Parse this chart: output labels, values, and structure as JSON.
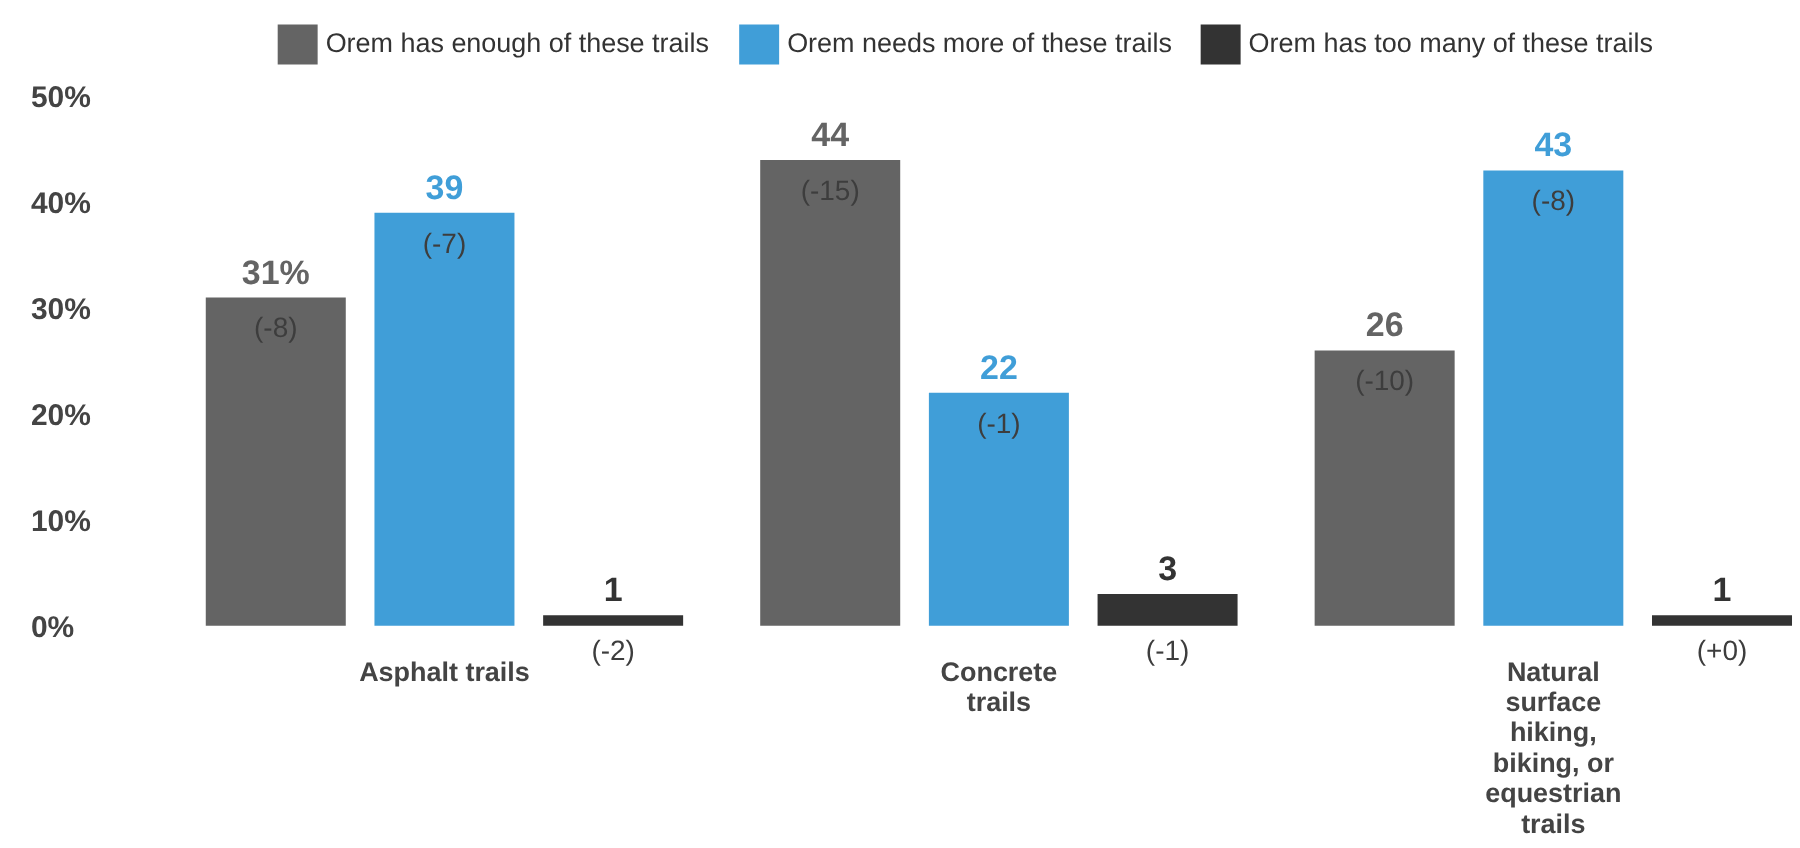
{
  "chart_data": {
    "type": "bar",
    "categories": [
      "Asphalt trails",
      "Concrete trails",
      "Natural surface hiking, biking, or equestrian trails"
    ],
    "series": [
      {
        "name": "Orem has enough of these trails",
        "color": "#646464",
        "values": [
          31,
          44,
          26
        ],
        "value_labels": [
          "31%",
          "44",
          "26"
        ]
      },
      {
        "name": "Orem needs more of these trails",
        "color": "#409ed8",
        "values": [
          39,
          22,
          43
        ],
        "value_labels": [
          "39",
          "22",
          "43"
        ]
      },
      {
        "name": "Orem has too many of these trails",
        "color": "#333333",
        "values": [
          1,
          3,
          1
        ],
        "value_labels": [
          "1",
          "3",
          "1"
        ]
      }
    ],
    "ylim": [
      0,
      50
    ],
    "yticks": [
      {
        "value": 0,
        "label": "0%"
      },
      {
        "value": 10,
        "label": "10%"
      },
      {
        "value": 20,
        "label": "20%"
      },
      {
        "value": 30,
        "label": "30%"
      },
      {
        "value": 40,
        "label": "40%"
      },
      {
        "value": 50,
        "label": "50%"
      }
    ],
    "legend": "top",
    "annotations": [
      "(-8)",
      "(-7)",
      "(-2)",
      "(-15)",
      "(-1)",
      "(-1)",
      "(-10)",
      "(-8)",
      "(+0)"
    ]
  }
}
